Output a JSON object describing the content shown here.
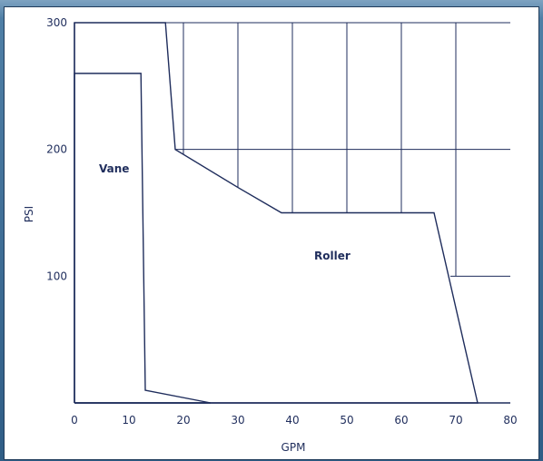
{
  "chart_data": {
    "type": "area",
    "xlabel": "GPM",
    "ylabel": "PSI",
    "xlim": [
      0,
      80
    ],
    "ylim": [
      0,
      300
    ],
    "x_ticks": [
      "0",
      "10",
      "20",
      "30",
      "40",
      "50",
      "60",
      "70",
      "80"
    ],
    "y_ticks": [
      "100",
      "200",
      "300"
    ],
    "line_color": "#1f2d5c",
    "regions": [
      {
        "name": "Vane",
        "points": [
          [
            0,
            0
          ],
          [
            0,
            260
          ],
          [
            12.2,
            260
          ],
          [
            13,
            10
          ],
          [
            25,
            0
          ],
          [
            0,
            0
          ]
        ]
      },
      {
        "name": "Roller",
        "points": [
          [
            0,
            0
          ],
          [
            0,
            300
          ],
          [
            16.7,
            300
          ],
          [
            18.5,
            200
          ],
          [
            30,
            170
          ],
          [
            38,
            150
          ],
          [
            66,
            150
          ],
          [
            74,
            0
          ],
          [
            0,
            0
          ]
        ]
      }
    ],
    "grid_segments": [
      [
        [
          18.5,
          200
        ],
        [
          80,
          200
        ]
      ],
      [
        [
          69,
          100
        ],
        [
          80,
          100
        ]
      ],
      [
        [
          20,
          300
        ],
        [
          20,
          196
        ]
      ],
      [
        [
          30,
          300
        ],
        [
          30,
          170
        ]
      ],
      [
        [
          40,
          300
        ],
        [
          40,
          150
        ]
      ],
      [
        [
          50,
          300
        ],
        [
          50,
          150
        ]
      ],
      [
        [
          60,
          300
        ],
        [
          60,
          150
        ]
      ],
      [
        [
          70,
          300
        ],
        [
          70,
          100
        ]
      ],
      [
        [
          16.7,
          300
        ],
        [
          80,
          300
        ]
      ]
    ],
    "annotations": [
      {
        "text": "Vane",
        "x": 4.5,
        "y": 182
      },
      {
        "text": "Roller",
        "x": 44,
        "y": 113
      }
    ]
  }
}
